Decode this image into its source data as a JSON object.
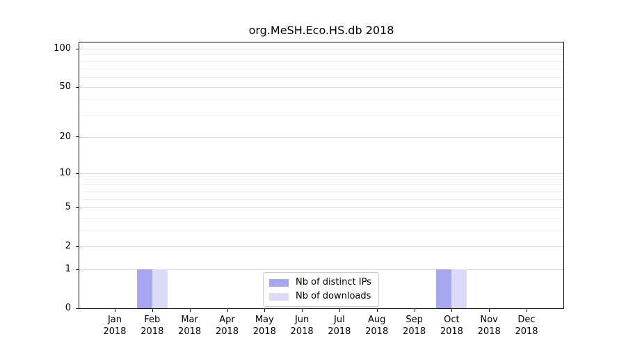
{
  "chart_data": {
    "type": "bar",
    "title": "org.MeSH.Eco.HS.db 2018",
    "x_ticks": [
      {
        "month": "Jan",
        "year": "2018"
      },
      {
        "month": "Feb",
        "year": "2018"
      },
      {
        "month": "Mar",
        "year": "2018"
      },
      {
        "month": "Apr",
        "year": "2018"
      },
      {
        "month": "May",
        "year": "2018"
      },
      {
        "month": "Jun",
        "year": "2018"
      },
      {
        "month": "Jul",
        "year": "2018"
      },
      {
        "month": "Aug",
        "year": "2018"
      },
      {
        "month": "Sep",
        "year": "2018"
      },
      {
        "month": "Oct",
        "year": "2018"
      },
      {
        "month": "Nov",
        "year": "2018"
      },
      {
        "month": "Dec",
        "year": "2018"
      }
    ],
    "series": [
      {
        "name": "Nb of distinct IPs",
        "color": "#a6a6f1",
        "values": [
          0,
          1,
          0,
          0,
          0,
          0,
          0,
          0,
          0,
          1,
          0,
          0
        ]
      },
      {
        "name": "Nb of downloads",
        "color": "#dbdbf8",
        "values": [
          0,
          1,
          0,
          0,
          0,
          0,
          0,
          0,
          0,
          1,
          0,
          0
        ]
      }
    ],
    "y_scale": "log10(1+x)",
    "y_ticks": [
      0,
      1,
      2,
      5,
      10,
      20,
      50,
      100
    ],
    "y_gridlines_minor": [
      3,
      4,
      6,
      7,
      8,
      9,
      30,
      40,
      60,
      70,
      80,
      90
    ],
    "ylim": [
      0,
      112
    ],
    "grid": "horizontal",
    "legend_position": "bottom-center"
  }
}
